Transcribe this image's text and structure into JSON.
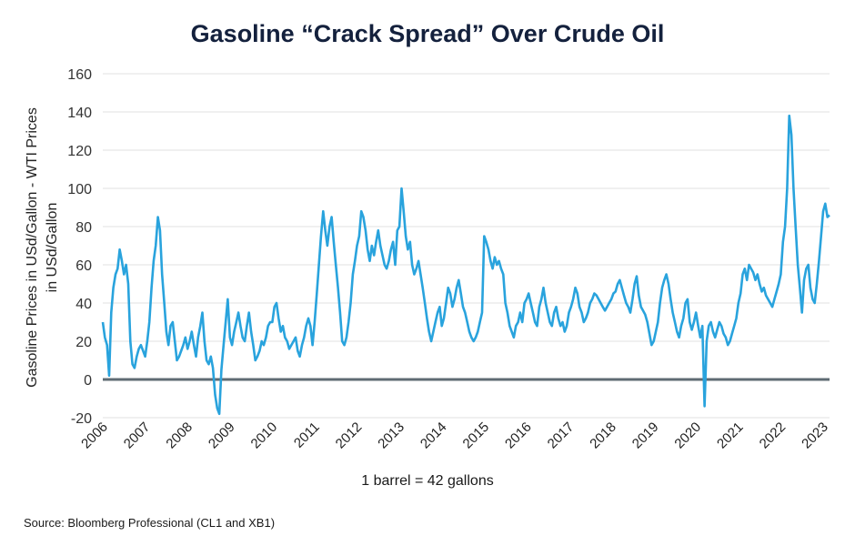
{
  "chart_data": {
    "type": "line",
    "title": "Gasoline “Crack Spread” Over Crude Oil",
    "ylabel_line1": "Gasoline Prices in USd/Gallon - WTI Prices",
    "ylabel_line2": "in USd/Gallon",
    "xlabel": "1 barrel = 42 gallons",
    "ylim": [
      -20,
      160
    ],
    "yticks": [
      -20,
      0,
      20,
      40,
      60,
      80,
      100,
      120,
      140,
      160
    ],
    "xticks": [
      "2006",
      "2007",
      "2008",
      "2009",
      "2010",
      "2011",
      "2012",
      "2013",
      "2014",
      "2015",
      "2016",
      "2017",
      "2018",
      "2019",
      "2020",
      "2021",
      "2022",
      "2023"
    ],
    "xlim": [
      2006.0,
      2023.15
    ],
    "grid": "horizontal",
    "line_color": "#29a3dd",
    "series": [
      {
        "x": [
          2006.0,
          2006.05,
          2006.1,
          2006.15,
          2006.2,
          2006.25,
          2006.3,
          2006.35,
          2006.4,
          2006.45,
          2006.5,
          2006.55,
          2006.6,
          2006.65,
          2006.7,
          2006.75,
          2006.8,
          2006.85,
          2006.9,
          2006.95,
          2007.0,
          2007.05,
          2007.1,
          2007.15,
          2007.2,
          2007.25,
          2007.3,
          2007.35,
          2007.4,
          2007.45,
          2007.5,
          2007.55,
          2007.6,
          2007.65,
          2007.7,
          2007.75,
          2007.8,
          2007.85,
          2007.9,
          2007.95,
          2008.0,
          2008.05,
          2008.1,
          2008.15,
          2008.2,
          2008.25,
          2008.3,
          2008.35,
          2008.4,
          2008.45,
          2008.5,
          2008.55,
          2008.6,
          2008.65,
          2008.7,
          2008.75,
          2008.8,
          2008.85,
          2008.9,
          2008.95,
          2009.0,
          2009.05,
          2009.1,
          2009.15,
          2009.2,
          2009.25,
          2009.3,
          2009.35,
          2009.4,
          2009.45,
          2009.5,
          2009.55,
          2009.6,
          2009.65,
          2009.7,
          2009.75,
          2009.8,
          2009.85,
          2009.9,
          2009.95,
          2010.0,
          2010.05,
          2010.1,
          2010.15,
          2010.2,
          2010.25,
          2010.3,
          2010.35,
          2010.4,
          2010.45,
          2010.5,
          2010.55,
          2010.6,
          2010.65,
          2010.7,
          2010.75,
          2010.8,
          2010.85,
          2010.9,
          2010.95,
          2011.0,
          2011.05,
          2011.1,
          2011.15,
          2011.2,
          2011.25,
          2011.3,
          2011.35,
          2011.4,
          2011.45,
          2011.5,
          2011.55,
          2011.6,
          2011.65,
          2011.7,
          2011.75,
          2011.8,
          2011.85,
          2011.9,
          2011.95,
          2012.0,
          2012.05,
          2012.1,
          2012.15,
          2012.2,
          2012.25,
          2012.3,
          2012.35,
          2012.4,
          2012.45,
          2012.5,
          2012.55,
          2012.6,
          2012.65,
          2012.7,
          2012.75,
          2012.8,
          2012.85,
          2012.9,
          2012.95,
          2013.0,
          2013.05,
          2013.1,
          2013.15,
          2013.2,
          2013.25,
          2013.3,
          2013.35,
          2013.4,
          2013.45,
          2013.5,
          2013.55,
          2013.6,
          2013.65,
          2013.7,
          2013.75,
          2013.8,
          2013.85,
          2013.9,
          2013.95,
          2014.0,
          2014.05,
          2014.1,
          2014.15,
          2014.2,
          2014.25,
          2014.3,
          2014.35,
          2014.4,
          2014.45,
          2014.5,
          2014.55,
          2014.6,
          2014.65,
          2014.7,
          2014.75,
          2014.8,
          2014.85,
          2014.9,
          2014.95,
          2015.0,
          2015.05,
          2015.1,
          2015.15,
          2015.2,
          2015.25,
          2015.3,
          2015.35,
          2015.4,
          2015.45,
          2015.5,
          2015.55,
          2015.6,
          2015.65,
          2015.7,
          2015.75,
          2015.8,
          2015.85,
          2015.9,
          2015.95,
          2016.0,
          2016.05,
          2016.1,
          2016.15,
          2016.2,
          2016.25,
          2016.3,
          2016.35,
          2016.4,
          2016.45,
          2016.5,
          2016.55,
          2016.6,
          2016.65,
          2016.7,
          2016.75,
          2016.8,
          2016.85,
          2016.9,
          2016.95,
          2017.0,
          2017.05,
          2017.1,
          2017.15,
          2017.2,
          2017.25,
          2017.3,
          2017.35,
          2017.4,
          2017.45,
          2017.5,
          2017.55,
          2017.6,
          2017.65,
          2017.7,
          2017.75,
          2017.8,
          2017.85,
          2017.9,
          2017.95,
          2018.0,
          2018.05,
          2018.1,
          2018.15,
          2018.2,
          2018.25,
          2018.3,
          2018.35,
          2018.4,
          2018.45,
          2018.5,
          2018.55,
          2018.6,
          2018.65,
          2018.7,
          2018.75,
          2018.8,
          2018.85,
          2018.9,
          2018.95,
          2019.0,
          2019.05,
          2019.1,
          2019.15,
          2019.2,
          2019.25,
          2019.3,
          2019.35,
          2019.4,
          2019.45,
          2019.5,
          2019.55,
          2019.6,
          2019.65,
          2019.7,
          2019.75,
          2019.8,
          2019.85,
          2019.9,
          2019.95,
          2020.0,
          2020.05,
          2020.1,
          2020.15,
          2020.2,
          2020.25,
          2020.3,
          2020.35,
          2020.4,
          2020.45,
          2020.5,
          2020.55,
          2020.6,
          2020.65,
          2020.7,
          2020.75,
          2020.8,
          2020.85,
          2020.9,
          2020.95,
          2021.0,
          2021.05,
          2021.1,
          2021.15,
          2021.2,
          2021.25,
          2021.3,
          2021.35,
          2021.4,
          2021.45,
          2021.5,
          2021.55,
          2021.6,
          2021.65,
          2021.7,
          2021.75,
          2021.8,
          2021.85,
          2021.9,
          2021.95,
          2022.0,
          2022.05,
          2022.1,
          2022.15,
          2022.2,
          2022.25,
          2022.3,
          2022.35,
          2022.4,
          2022.45,
          2022.5,
          2022.55,
          2022.6,
          2022.65,
          2022.7,
          2022.75,
          2022.8,
          2022.85,
          2022.9,
          2022.95,
          2023.0,
          2023.05,
          2023.1,
          2023.15
        ],
        "y": [
          30,
          22,
          18,
          2,
          35,
          48,
          55,
          58,
          68,
          62,
          55,
          60,
          50,
          20,
          8,
          6,
          12,
          16,
          18,
          15,
          12,
          20,
          30,
          48,
          62,
          70,
          85,
          78,
          55,
          40,
          25,
          18,
          28,
          30,
          20,
          10,
          12,
          15,
          18,
          22,
          16,
          20,
          25,
          18,
          12,
          22,
          28,
          35,
          20,
          10,
          8,
          12,
          6,
          -8,
          -15,
          -18,
          5,
          18,
          30,
          42,
          22,
          18,
          25,
          30,
          35,
          28,
          22,
          20,
          28,
          35,
          25,
          18,
          10,
          12,
          15,
          20,
          18,
          22,
          28,
          30,
          30,
          38,
          40,
          32,
          25,
          28,
          22,
          20,
          16,
          18,
          20,
          22,
          15,
          12,
          18,
          22,
          28,
          32,
          28,
          18,
          30,
          45,
          60,
          75,
          88,
          78,
          70,
          80,
          85,
          72,
          60,
          48,
          35,
          20,
          18,
          22,
          30,
          40,
          55,
          62,
          70,
          75,
          88,
          85,
          78,
          68,
          62,
          70,
          65,
          72,
          78,
          70,
          65,
          60,
          58,
          62,
          68,
          72,
          60,
          78,
          80,
          100,
          88,
          75,
          68,
          72,
          60,
          55,
          58,
          62,
          55,
          48,
          40,
          32,
          25,
          20,
          25,
          30,
          35,
          38,
          28,
          32,
          40,
          48,
          45,
          38,
          42,
          48,
          52,
          45,
          38,
          35,
          30,
          25,
          22,
          20,
          22,
          25,
          30,
          35,
          75,
          72,
          68,
          62,
          58,
          64,
          60,
          62,
          58,
          55,
          40,
          35,
          28,
          25,
          22,
          28,
          30,
          35,
          30,
          40,
          42,
          45,
          40,
          35,
          30,
          28,
          38,
          42,
          48,
          40,
          35,
          30,
          28,
          35,
          38,
          32,
          28,
          30,
          25,
          28,
          35,
          38,
          42,
          48,
          45,
          38,
          35,
          30,
          32,
          35,
          40,
          42,
          45,
          44,
          42,
          40,
          38,
          36,
          38,
          40,
          42,
          45,
          46,
          50,
          52,
          48,
          44,
          40,
          38,
          35,
          42,
          50,
          54,
          44,
          38,
          36,
          34,
          30,
          24,
          18,
          20,
          25,
          30,
          40,
          48,
          52,
          55,
          50,
          42,
          35,
          30,
          25,
          22,
          28,
          32,
          40,
          42,
          30,
          26,
          30,
          35,
          28,
          22,
          28,
          -14,
          20,
          28,
          30,
          25,
          22,
          26,
          30,
          28,
          24,
          22,
          18,
          20,
          24,
          28,
          32,
          40,
          45,
          55,
          58,
          52,
          60,
          58,
          56,
          52,
          55,
          50,
          46,
          48,
          44,
          42,
          40,
          38,
          42,
          46,
          50,
          55,
          72,
          80,
          100,
          138,
          128,
          100,
          80,
          60,
          48,
          35,
          52,
          58,
          60,
          48,
          42,
          40,
          50,
          62,
          75,
          88,
          92,
          85,
          86
        ]
      }
    ]
  },
  "note": "1 barrel = 42 gallons",
  "source": "Source: Bloomberg Professional (CL1 and XB1)"
}
